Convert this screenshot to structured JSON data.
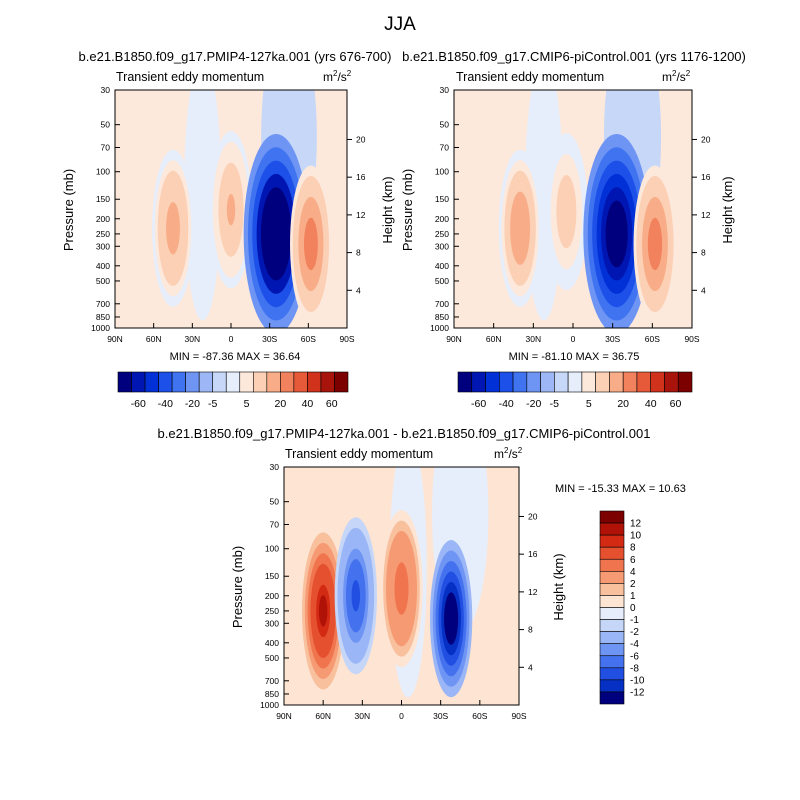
{
  "figure": {
    "title": "JJA"
  },
  "chart_data": [
    {
      "type": "heatmap",
      "panel": "top-left",
      "case_title": "b.e21.B1850.f09_g17.PMIP4-127ka.001 (yrs 676-700)",
      "field_label": "Transient eddy momentum",
      "units_base": "m",
      "units_exp": "2",
      "units_den": "/s",
      "units_den_exp": "2",
      "xlabel": "",
      "ylabel": "Pressure (mb)",
      "y2label": "Height (km)",
      "x_ticks": [
        "90N",
        "60N",
        "30N",
        "0",
        "30S",
        "60S",
        "90S"
      ],
      "y_ticks": [
        "30",
        "50",
        "70",
        "100",
        "150",
        "200",
        "250",
        "300",
        "400",
        "500",
        "700",
        "850",
        "1000"
      ],
      "y2_ticks": [
        "20",
        "16",
        "12",
        "8",
        "4"
      ],
      "stats": "MIN = -87.36  MAX =  36.64",
      "min": -87.36,
      "max": 36.64,
      "features": [
        {
          "lat": 45,
          "p": 230,
          "value": 25
        },
        {
          "lat": 0,
          "p": 175,
          "value": 22
        },
        {
          "lat": -35,
          "p": 250,
          "value": -87
        },
        {
          "lat": -62,
          "p": 290,
          "value": 36
        }
      ]
    },
    {
      "type": "heatmap",
      "panel": "top-right",
      "case_title": "b.e21.B1850.f09_g17.CMIP6-piControl.001 (yrs 1176-1200)",
      "field_label": "Transient eddy momentum",
      "units_base": "m",
      "units_exp": "2",
      "units_den": "/s",
      "units_den_exp": "2",
      "xlabel": "",
      "ylabel": "Pressure (mb)",
      "y2label": "Height (km)",
      "x_ticks": [
        "90N",
        "60N",
        "30N",
        "0",
        "30S",
        "60S",
        "90S"
      ],
      "y_ticks": [
        "30",
        "50",
        "70",
        "100",
        "150",
        "200",
        "250",
        "300",
        "400",
        "500",
        "700",
        "850",
        "1000"
      ],
      "y2_ticks": [
        "20",
        "16",
        "12",
        "8",
        "4"
      ],
      "stats": "MIN = -81.10  MAX =  36.75",
      "min": -81.1,
      "max": 36.75,
      "features": [
        {
          "lat": 40,
          "p": 230,
          "value": 28
        },
        {
          "lat": 5,
          "p": 180,
          "value": 15
        },
        {
          "lat": -33,
          "p": 250,
          "value": -81
        },
        {
          "lat": -62,
          "p": 290,
          "value": 36
        }
      ]
    },
    {
      "type": "heatmap",
      "panel": "bottom",
      "case_title": "b.e21.B1850.f09_g17.PMIP4-127ka.001 - b.e21.B1850.f09_g17.CMIP6-piControl.001",
      "field_label": "Transient eddy momentum",
      "units_base": "m",
      "units_exp": "2",
      "units_den": "/s",
      "units_den_exp": "2",
      "xlabel": "",
      "ylabel": "Pressure (mb)",
      "y2label": "Height (km)",
      "x_ticks": [
        "90N",
        "60N",
        "30N",
        "0",
        "30S",
        "60S",
        "90S"
      ],
      "y_ticks": [
        "30",
        "50",
        "70",
        "100",
        "150",
        "200",
        "250",
        "300",
        "400",
        "500",
        "700",
        "850",
        "1000"
      ],
      "y2_ticks": [
        "20",
        "16",
        "12",
        "8",
        "4"
      ],
      "stats": "MIN = -15.33  MAX =  10.63",
      "min": -15.33,
      "max": 10.63,
      "features": [
        {
          "lat": 60,
          "p": 250,
          "value": 10.6
        },
        {
          "lat": 35,
          "p": 200,
          "value": -9
        },
        {
          "lat": 0,
          "p": 180,
          "value": 5
        },
        {
          "lat": -38,
          "p": 280,
          "value": -15.3
        }
      ]
    }
  ],
  "colorbars": {
    "full_levels": [
      "-60",
      "-40",
      "-20",
      "-5",
      "5",
      "20",
      "40",
      "60"
    ],
    "full_colors": [
      "#00007f",
      "#0016b2",
      "#0030d6",
      "#1c50e8",
      "#3f73f0",
      "#6e95f4",
      "#9db7f6",
      "#c6d7f8",
      "#e6eefb",
      "#fde9dc",
      "#fbd0b5",
      "#f8ad88",
      "#f1825d",
      "#e65a3a",
      "#d0321c",
      "#a8140b",
      "#7c0000"
    ],
    "diff_levels": [
      "12",
      "10",
      "8",
      "6",
      "4",
      "2",
      "1",
      "0",
      "-1",
      "-2",
      "-4",
      "-6",
      "-8",
      "-10",
      "-12"
    ],
    "diff_colors": [
      "#7c0000",
      "#b01208",
      "#d32a14",
      "#e5502f",
      "#f0754f",
      "#f59a72",
      "#f9c09e",
      "#fde4d3",
      "#e7eefb",
      "#c5d6f8",
      "#9ab6f6",
      "#6e94f4",
      "#4472ee",
      "#214fe1",
      "#0630c4",
      "#00007f"
    ]
  }
}
